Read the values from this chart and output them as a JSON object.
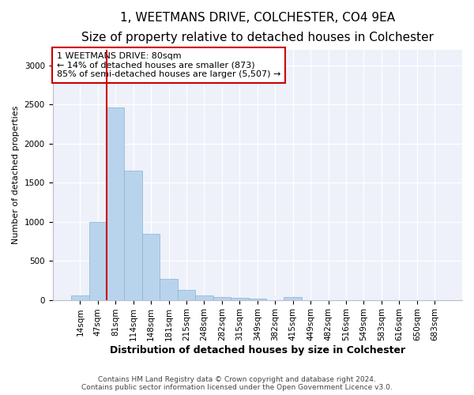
{
  "title": "1, WEETMANS DRIVE, COLCHESTER, CO4 9EA",
  "subtitle": "Size of property relative to detached houses in Colchester",
  "xlabel": "Distribution of detached houses by size in Colchester",
  "ylabel": "Number of detached properties",
  "categories": [
    "14sqm",
    "47sqm",
    "81sqm",
    "114sqm",
    "148sqm",
    "181sqm",
    "215sqm",
    "248sqm",
    "282sqm",
    "315sqm",
    "349sqm",
    "382sqm",
    "415sqm",
    "449sqm",
    "482sqm",
    "516sqm",
    "549sqm",
    "583sqm",
    "616sqm",
    "650sqm",
    "683sqm"
  ],
  "values": [
    55,
    1000,
    2460,
    1650,
    840,
    270,
    130,
    55,
    40,
    30,
    20,
    0,
    40,
    0,
    0,
    0,
    0,
    0,
    0,
    0,
    0
  ],
  "bar_color": "#b8d4ed",
  "bar_edge_color": "#8ab0d0",
  "vline_color": "#cc0000",
  "vline_index": 2,
  "annotation_text": "1 WEETMANS DRIVE: 80sqm\n← 14% of detached houses are smaller (873)\n85% of semi-detached houses are larger (5,507) →",
  "annotation_box_facecolor": "#ffffff",
  "annotation_box_edgecolor": "#cc0000",
  "ylim": [
    0,
    3200
  ],
  "yticks": [
    0,
    500,
    1000,
    1500,
    2000,
    2500,
    3000
  ],
  "bg_color": "#eef1fa",
  "title_fontsize": 11,
  "subtitle_fontsize": 9.5,
  "xlabel_fontsize": 9,
  "ylabel_fontsize": 8,
  "tick_fontsize": 7.5,
  "annotation_fontsize": 8,
  "footer_fontsize": 6.5,
  "footer_line1": "Contains HM Land Registry data © Crown copyright and database right 2024.",
  "footer_line2": "Contains public sector information licensed under the Open Government Licence v3.0."
}
